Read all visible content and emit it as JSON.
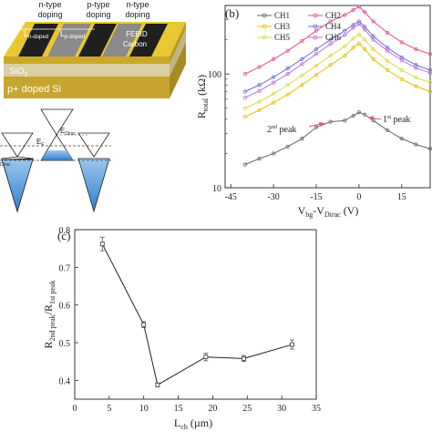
{
  "panel_a": {
    "doping_labels": [
      {
        "line1": "n-type",
        "line2": "doping"
      },
      {
        "line1": "p-type",
        "line2": "doping"
      },
      {
        "line1": "n-type",
        "line2": "doping"
      }
    ],
    "l_n_doped": "L",
    "l_n_doped_sub": "n-doped",
    "l_p_doped": "L",
    "l_p_doped_sub": "p-doped",
    "febid_line1": "FEBID",
    "febid_line2": "Carbon",
    "sio2": "SiO",
    "sio2_sub": "2",
    "substrate": "p+ doped Si",
    "ef_label": "E",
    "ef_sub": "F",
    "edirac_label": "E",
    "edirac_sub": "Dirac",
    "edirac_left": "Dirac",
    "colors": {
      "gold": "#e8c832",
      "dark_stripe": "#222222",
      "gray_stripe": "#8a8a8a",
      "sio2": "#d8d0a8",
      "si": "#c8a830",
      "cone_fill": "#4a90d9"
    }
  },
  "chart_data": [
    {
      "panel": "(b)",
      "type": "line",
      "xlabel": "V",
      "xlabel_sub1": "bg",
      "xlabel_mid": "-V",
      "xlabel_sub2": "Dirac",
      "xlabel_unit": " (V)",
      "ylabel": "R",
      "ylabel_sub": "total",
      "ylabel_unit": " (kΩ)",
      "xlim": [
        -47,
        25
      ],
      "ylim": [
        10,
        400
      ],
      "yscale": "log",
      "xticks": [
        -45,
        -30,
        -15,
        0,
        15
      ],
      "yticks": [
        10,
        100
      ],
      "legend_position": "top",
      "annotations": [
        {
          "text": "2",
          "sup": "nd",
          "rest": " peak",
          "x": -15,
          "y": 38
        },
        {
          "text": "1",
          "sup": "st",
          "rest": " peak",
          "x": 0,
          "y": 46
        }
      ],
      "x": [
        -40,
        -35,
        -30,
        -25,
        -20,
        -15,
        -10,
        -5,
        -2,
        0,
        2,
        5,
        10,
        15,
        20,
        25
      ],
      "series": [
        {
          "name": "CH1",
          "color": "#666666",
          "marker": "circle",
          "values": [
            16,
            18,
            20,
            23,
            27,
            34,
            38,
            39,
            43,
            46,
            44,
            39,
            32,
            27,
            24,
            22
          ]
        },
        {
          "name": "CH2",
          "color": "#e74c8c",
          "marker": "circle",
          "values": [
            100,
            115,
            135,
            160,
            195,
            240,
            290,
            330,
            365,
            390,
            350,
            290,
            230,
            190,
            165,
            150
          ]
        },
        {
          "name": "CH3",
          "color": "#e8c000",
          "marker": "circle",
          "values": [
            42,
            48,
            56,
            66,
            80,
            98,
            120,
            145,
            170,
            185,
            165,
            135,
            108,
            90,
            78,
            70
          ]
        },
        {
          "name": "CH4",
          "color": "#6a6ad8",
          "marker": "circle",
          "values": [
            70,
            80,
            94,
            112,
            135,
            165,
            200,
            240,
            270,
            290,
            260,
            215,
            170,
            140,
            120,
            108
          ]
        },
        {
          "name": "CH5",
          "color": "#d8d84a",
          "marker": "circle",
          "values": [
            50,
            57,
            67,
            80,
            97,
            118,
            145,
            175,
            205,
            222,
            200,
            165,
            130,
            108,
            93,
            84
          ]
        },
        {
          "name": "CH6",
          "color": "#c070d0",
          "marker": "circle",
          "values": [
            62,
            71,
            84,
            100,
            122,
            150,
            183,
            220,
            255,
            275,
            245,
            200,
            160,
            132,
            113,
            102
          ]
        }
      ]
    },
    {
      "panel": "(c)",
      "type": "line",
      "xlabel": "L",
      "xlabel_sub": "ch",
      "xlabel_unit": " (µm)",
      "ylabel": "R",
      "ylabel_sub1": "2nd peak",
      "ylabel_mid": "/R",
      "ylabel_sub2": "1st peak",
      "xlim": [
        0,
        35
      ],
      "ylim": [
        0.35,
        0.8
      ],
      "xticks": [
        0,
        5,
        10,
        15,
        20,
        25,
        30,
        35
      ],
      "yticks": [
        0.4,
        0.5,
        0.6,
        0.7,
        0.8
      ],
      "x": [
        4,
        10,
        12,
        19,
        24.5,
        31.5
      ],
      "values": [
        0.762,
        0.548,
        0.388,
        0.462,
        0.458,
        0.495
      ],
      "errors": [
        0.018,
        0.008,
        0.005,
        0.01,
        0.008,
        0.012
      ],
      "color": "#555555"
    }
  ]
}
